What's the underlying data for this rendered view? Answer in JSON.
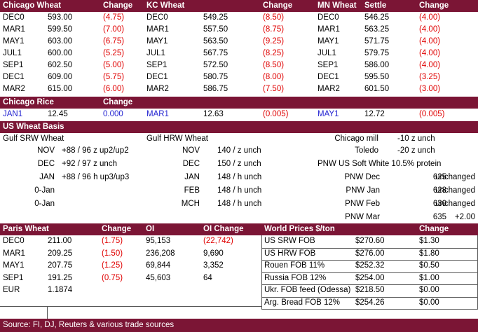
{
  "futures": {
    "headers": [
      "Chicago Wheat",
      "Change",
      "KC Wheat",
      "Change",
      "MN Wheat",
      "Settle",
      "Change"
    ],
    "rows": [
      [
        "DEC0",
        "593.00",
        "(4.75)",
        "DEC0",
        "549.25",
        "(8.50)",
        "DEC0",
        "546.25",
        "(4.00)"
      ],
      [
        "MAR1",
        "599.50",
        "(7.00)",
        "MAR1",
        "557.50",
        "(8.75)",
        "MAR1",
        "563.25",
        "(4.00)"
      ],
      [
        "MAY1",
        "603.00",
        "(6.75)",
        "MAY1",
        "563.50",
        "(9.25)",
        "MAY1",
        "571.75",
        "(4.00)"
      ],
      [
        "JUL1",
        "600.00",
        "(5.25)",
        "JUL1",
        "567.75",
        "(8.25)",
        "JUL1",
        "579.75",
        "(4.00)"
      ],
      [
        "SEP1",
        "602.50",
        "(5.00)",
        "SEP1",
        "572.50",
        "(8.50)",
        "SEP1",
        "586.00",
        "(4.00)"
      ],
      [
        "DEC1",
        "609.00",
        "(5.75)",
        "DEC1",
        "580.75",
        "(8.00)",
        "DEC1",
        "595.50",
        "(3.25)"
      ],
      [
        "MAR2",
        "615.00",
        "(6.00)",
        "MAR2",
        "586.75",
        "(7.50)",
        "MAR2",
        "601.50",
        "(3.00)"
      ]
    ]
  },
  "rice": {
    "headers": [
      "Chicago Rice",
      "Change"
    ],
    "row": [
      "JAN1",
      "12.45",
      "0.000",
      "MAR1",
      "12.63",
      "(0.005)",
      "MAY1",
      "12.72",
      "(0.005)"
    ]
  },
  "basis": {
    "title": "US Wheat Basis",
    "gulf_srw": {
      "title": "Gulf SRW Wheat",
      "rows": [
        [
          "NOV",
          "+88 / 96 z up2/up2"
        ],
        [
          "DEC",
          "+92 / 97 z unch"
        ],
        [
          "JAN",
          "+88 / 96 h up3/up3"
        ],
        [
          "0-Jan"
        ],
        [
          "0-Jan"
        ]
      ]
    },
    "gulf_hrw": {
      "title": "Gulf HRW Wheat",
      "rows": [
        [
          "NOV",
          "140 / z unch"
        ],
        [
          "DEC",
          "150 / z unch"
        ],
        [
          "JAN",
          "148 / h unch"
        ],
        [
          "FEB",
          "148 / h unch"
        ],
        [
          "MCH",
          "148 / h unch"
        ]
      ]
    },
    "mills": [
      [
        "Chicago mill",
        "-10 z unch"
      ],
      [
        "Toledo",
        "-20 z unch"
      ]
    ],
    "pnw": {
      "title": "PNW US Soft White 10.5% protein",
      "rows": [
        [
          "PNW Dec",
          "625",
          "unchanged"
        ],
        [
          "PNW Jan",
          "628",
          "unchanged"
        ],
        [
          "PNW Feb",
          "630",
          "unchanged"
        ],
        [
          "PNW Mar",
          "635",
          "+2.00"
        ]
      ]
    }
  },
  "paris": {
    "headers": [
      "Paris Wheat",
      "Change",
      "OI",
      "OI Change"
    ],
    "rows": [
      [
        "DEC0",
        "211.00",
        "(1.75)",
        "95,153",
        "(22,742)"
      ],
      [
        "MAR1",
        "209.25",
        "(1.50)",
        "236,208",
        "9,690"
      ],
      [
        "MAY1",
        "207.75",
        "(1.25)",
        "69,844",
        "3,352"
      ],
      [
        "SEP1",
        "191.25",
        "(0.75)",
        "45,603",
        "64"
      ],
      [
        "EUR",
        "1.1874"
      ]
    ]
  },
  "world": {
    "headers": [
      "World Prices $/ton",
      "Change"
    ],
    "rows": [
      [
        "US SRW FOB",
        "$270.60",
        "$1.30"
      ],
      [
        "US HRW FOB",
        "$276.00",
        "$1.80"
      ],
      [
        "Rouen FOB 11%",
        "$252.32",
        "$0.50"
      ],
      [
        "Russia FOB 12%",
        "$254.00",
        "$1.00"
      ],
      [
        "Ukr. FOB feed (Odessa)",
        "$218.50",
        "$0.00"
      ],
      [
        "Arg. Bread FOB 12%",
        "$254.26",
        "$0.00"
      ]
    ]
  },
  "footer": "Source: FI, DJ, Reuters & various trade sources"
}
